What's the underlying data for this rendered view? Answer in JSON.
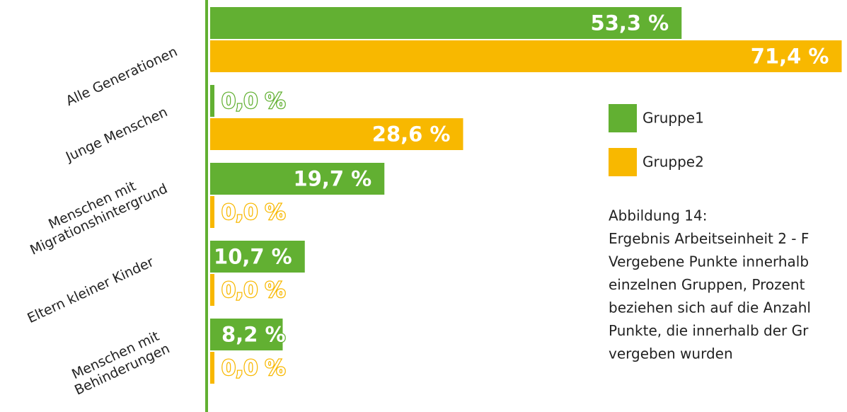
{
  "chart_data": {
    "type": "bar",
    "orientation": "horizontal",
    "categories": [
      [
        "Alle Generationen"
      ],
      [
        "Junge Menschen"
      ],
      [
        "Menschen mit",
        "Migrationshintergrund"
      ],
      [
        "Eltern kleiner Kinder"
      ],
      [
        "Menschen mit",
        "Behinderungen"
      ]
    ],
    "series": [
      {
        "name": "Gruppe1",
        "color": "#62b032",
        "values": [
          53.3,
          0.0,
          19.7,
          10.7,
          8.2
        ],
        "value_labels": [
          "53,3 %",
          "0,0 %",
          "19,7 %",
          "10,7 %",
          "8,2 %"
        ]
      },
      {
        "name": "Gruppe2",
        "color": "#f8b800",
        "values": [
          71.4,
          28.6,
          0.0,
          0.0,
          0.0
        ],
        "value_labels": [
          "71,4 %",
          "28,6 %",
          "0,0 %",
          "0,0 %",
          "0,0 %"
        ]
      }
    ],
    "xlim": [
      0,
      72
    ],
    "caption": [
      "Abbildung 14:",
      "Ergebnis Arbeitseinheit 2 - F",
      "Vergebene Punkte innerhalb",
      "einzelnen Gruppen, Prozent",
      "beziehen sich auf die Anzahl",
      "Punkte, die innerhalb der Gr",
      "vergeben wurden"
    ]
  }
}
